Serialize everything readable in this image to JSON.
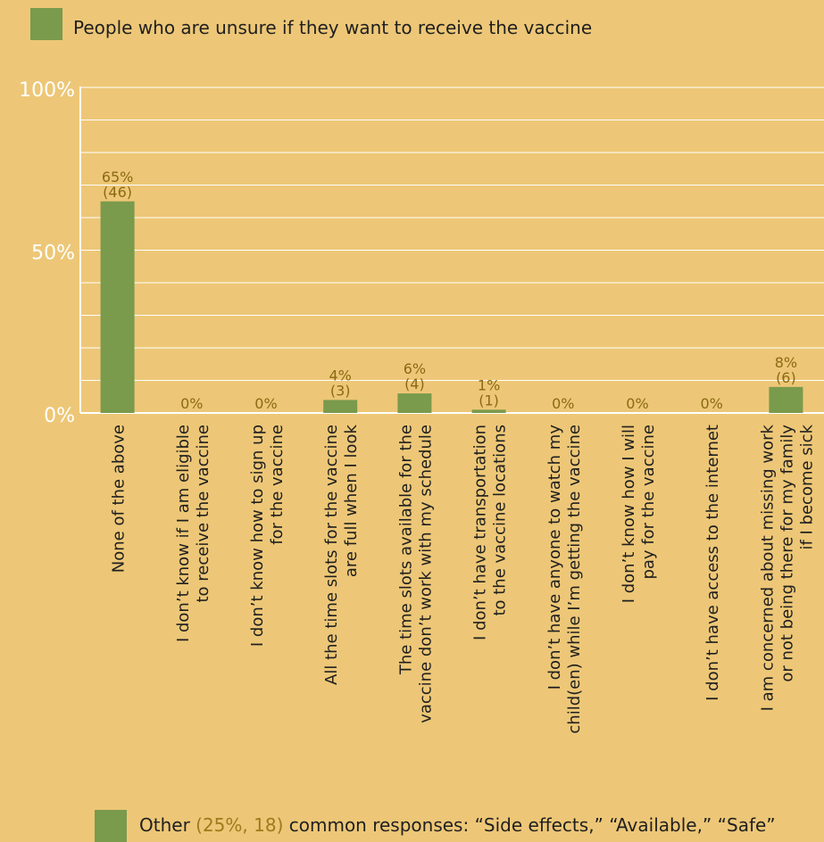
{
  "legend": {
    "label": "People who are unsure if they want to receive the vaccine"
  },
  "colors": {
    "background": "#EDC777",
    "bar": "#7A9A4C",
    "data_label": "#8A6A12",
    "axis_label": "#FFFFFF",
    "grid": "#FFFFFF",
    "text": "#1F1F1F"
  },
  "chart_data": {
    "type": "bar",
    "ylim": [
      0,
      100
    ],
    "y_ticks": [
      "0%",
      "50%",
      "100%"
    ],
    "grid": true,
    "categories": [
      "None of the above",
      "I don’t know if I am eligible to receive the vaccine",
      "I don’t know how to sign up for the vaccine",
      "All the time slots for the vaccine are full when I look",
      "The time slots available for the vaccine don’t work with my schedule",
      "I don’t have transportation to the vaccine locations",
      "I don’t have anyone to watch my child(en) while I’m getting the vaccine",
      "I don’t know how I will pay for the vaccine",
      "I don’t have access to the internet",
      "I am concerned about missing work or not being there for my family if I become sick"
    ],
    "category_lines": [
      [
        "None of the above"
      ],
      [
        "I don’t know if I am eligible",
        "to receive the vaccine"
      ],
      [
        "I don’t know how to sign up",
        "for the vaccine"
      ],
      [
        "All the time slots for the vaccine",
        "are full when I look"
      ],
      [
        "The time slots available for the",
        "vaccine don’t work with my schedule"
      ],
      [
        "I don’t have transportation",
        "to the vaccine locations"
      ],
      [
        "I don’t have anyone to watch my",
        "child(en) while I’m getting the vaccine"
      ],
      [
        "I don’t know how I will",
        "pay for the vaccine"
      ],
      [
        "I don’t have access to the internet"
      ],
      [
        "I am concerned about missing work",
        "or not being there for my family",
        "if I become sick"
      ]
    ],
    "series": [
      {
        "name": "People who are unsure if they want to receive the vaccine",
        "values": [
          65,
          0,
          0,
          4,
          6,
          1,
          0,
          0,
          0,
          8
        ],
        "counts": [
          46,
          0,
          0,
          3,
          4,
          1,
          0,
          0,
          0,
          6
        ]
      }
    ],
    "data_labels": [
      [
        "65%",
        "(46)"
      ],
      [
        "0%"
      ],
      [
        "0%"
      ],
      [
        "4%",
        "(3)"
      ],
      [
        "6%",
        "(4)"
      ],
      [
        "1%",
        "(1)"
      ],
      [
        "0%"
      ],
      [
        "0%"
      ],
      [
        "0%"
      ],
      [
        "8%",
        "(6)"
      ]
    ]
  },
  "footnote": {
    "prefix": "Other ",
    "highlight": "(25%, 18)",
    "suffix": " common responses: “Side effects,” “Available,” “Safe”"
  }
}
